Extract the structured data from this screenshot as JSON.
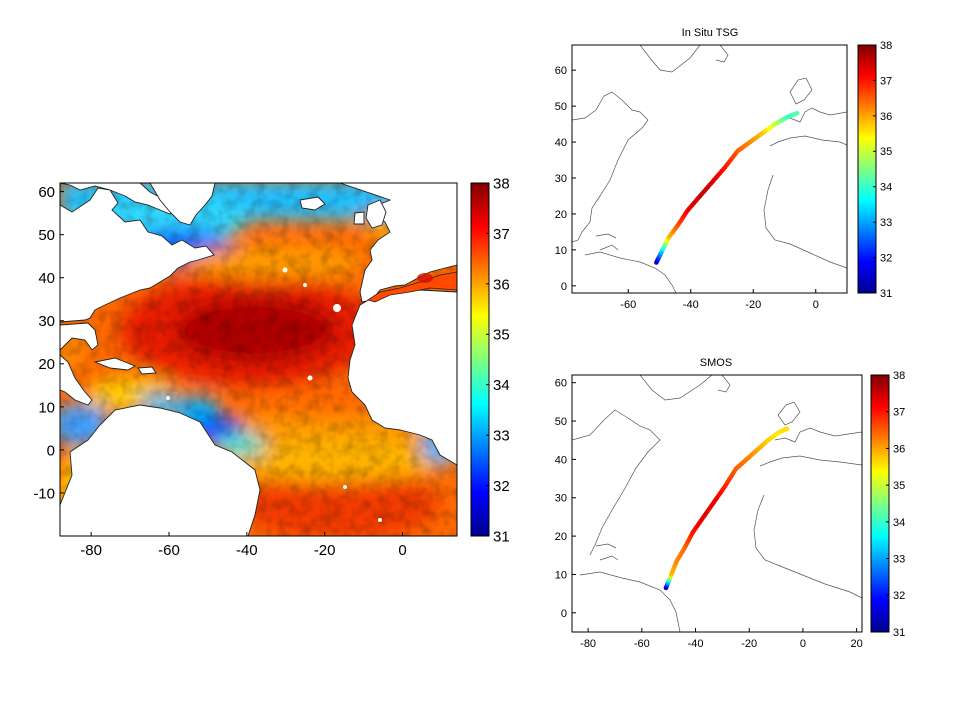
{
  "main_map": {
    "lon_range": [
      -88,
      14
    ],
    "lat_range": [
      -20,
      62
    ],
    "x_ticks": [
      -80,
      -60,
      -40,
      -20,
      0
    ],
    "y_ticks": [
      60,
      50,
      40,
      30,
      20,
      10,
      0,
      -10
    ],
    "x_tick_labels": [
      "-80",
      "-60",
      "-40",
      "-20",
      "0"
    ],
    "y_tick_labels": [
      "60",
      "50",
      "40",
      "30",
      "20",
      "10",
      "0",
      "-10"
    ]
  },
  "colorbar": {
    "min": 31,
    "max": 38,
    "ticks": [
      38,
      37,
      36,
      35,
      34,
      33,
      32,
      31
    ],
    "tick_labels": [
      "38",
      "37",
      "36",
      "35",
      "34",
      "33",
      "32",
      "31"
    ],
    "colormap": "jet"
  },
  "tsg_panel": {
    "title": "In Situ TSG",
    "lon_range": [
      -78,
      10
    ],
    "lat_range": [
      -2,
      67
    ],
    "x_ticks": [
      -60,
      -40,
      -20,
      0
    ],
    "y_ticks": [
      60,
      50,
      40,
      30,
      20,
      10,
      0
    ],
    "x_tick_labels": [
      "-60",
      "-40",
      "-20",
      "0"
    ],
    "y_tick_labels": [
      "60",
      "50",
      "40",
      "30",
      "20",
      "10",
      "0"
    ]
  },
  "smos_panel": {
    "title": "SMOS",
    "lon_range": [
      -86,
      22
    ],
    "lat_range": [
      -5,
      62
    ],
    "x_ticks": [
      -80,
      -60,
      -40,
      -20,
      0,
      20
    ],
    "y_ticks": [
      60,
      50,
      40,
      30,
      20,
      10,
      0
    ],
    "x_tick_labels": [
      "-80",
      "-60",
      "-40",
      "-20",
      "0",
      "20"
    ],
    "y_tick_labels": [
      "60",
      "50",
      "40",
      "30",
      "20",
      "10",
      "0"
    ]
  },
  "ship_track": {
    "points": [
      {
        "lon": -51,
        "lat": 6.5,
        "tsg": 31.5,
        "smos": 31.3
      },
      {
        "lon": -49,
        "lat": 10,
        "tsg": 33.5,
        "smos": 35.8
      },
      {
        "lon": -47,
        "lat": 13.5,
        "tsg": 35.8,
        "smos": 36.2
      },
      {
        "lon": -44,
        "lat": 17,
        "tsg": 36.6,
        "smos": 36.4
      },
      {
        "lon": -41,
        "lat": 21,
        "tsg": 37.2,
        "smos": 37.0
      },
      {
        "lon": -37,
        "lat": 25,
        "tsg": 37.5,
        "smos": 37.3
      },
      {
        "lon": -33,
        "lat": 29,
        "tsg": 37.4,
        "smos": 37.3
      },
      {
        "lon": -29,
        "lat": 33,
        "tsg": 37.0,
        "smos": 36.9
      },
      {
        "lon": -25,
        "lat": 37.5,
        "tsg": 36.5,
        "smos": 36.5
      },
      {
        "lon": -21,
        "lat": 40,
        "tsg": 36.2,
        "smos": 36.3
      },
      {
        "lon": -17,
        "lat": 42.5,
        "tsg": 35.8,
        "smos": 36.0
      },
      {
        "lon": -13,
        "lat": 45,
        "tsg": 35.0,
        "smos": 35.7
      },
      {
        "lon": -9,
        "lat": 47,
        "tsg": 34.0,
        "smos": 35.5
      },
      {
        "lon": -6,
        "lat": 48,
        "tsg": 34.2,
        "smos": 35.6
      }
    ]
  }
}
